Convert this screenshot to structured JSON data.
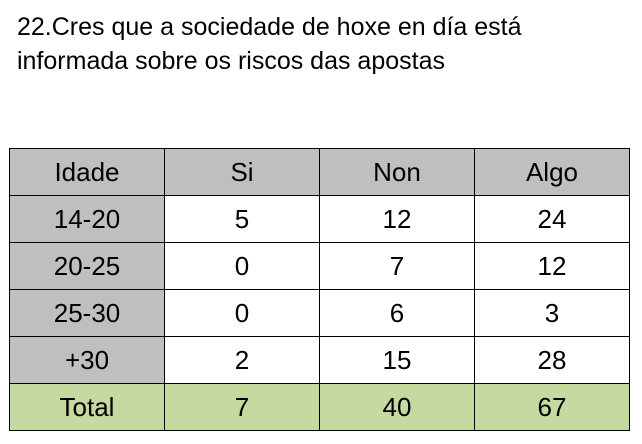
{
  "question": {
    "line1": "22.Cres que a sociedade de hoxe en día está",
    "line2": "informada sobre os riscos das apostas"
  },
  "table": {
    "headers": [
      "Idade",
      "Si",
      "Non",
      "Algo"
    ],
    "rows": [
      [
        "14-20",
        "5",
        "12",
        "24"
      ],
      [
        "20-25",
        "0",
        "7",
        "12"
      ],
      [
        "25-30",
        "0",
        "6",
        "3"
      ],
      [
        "+30",
        "2",
        "15",
        "28"
      ]
    ],
    "total": [
      "Total",
      "7",
      "40",
      "67"
    ]
  },
  "colors": {
    "header_bg": "#bfbfbf",
    "label_bg": "#bfbfbf",
    "total_bg": "#c5d9a0",
    "cell_bg": "#ffffff",
    "border": "#000000"
  }
}
